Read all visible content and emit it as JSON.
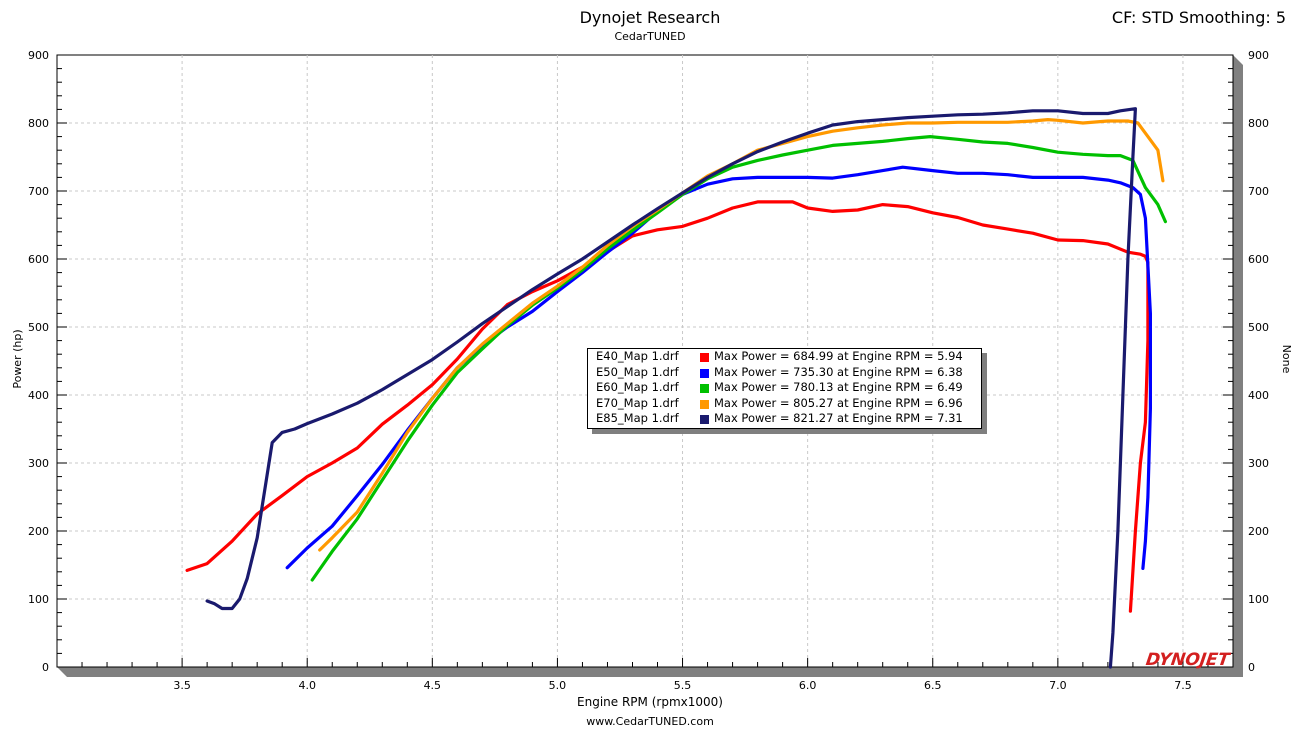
{
  "header": {
    "title": "Dynojet Research",
    "subtitle": "CedarTUNED",
    "correction": "CF: STD Smoothing: 5"
  },
  "footer": {
    "url": "www.CedarTUNED.com"
  },
  "logo": {
    "text": "DYNOJET",
    "color": "#d32020"
  },
  "chart_data": {
    "type": "line",
    "title": "Dynojet Research",
    "subtitle": "CedarTUNED",
    "xlabel": "Engine RPM (rpmx1000)",
    "ylabel": "Power (hp)",
    "y2label": "None",
    "xlim": [
      3.0,
      7.7
    ],
    "ylim": [
      0,
      900
    ],
    "x_ticks": [
      "3.5",
      "4.0",
      "4.5",
      "5.0",
      "5.5",
      "6.0",
      "6.5",
      "7.0",
      "7.5"
    ],
    "y_ticks": [
      "0",
      "100",
      "200",
      "300",
      "400",
      "500",
      "600",
      "700",
      "800",
      "900"
    ],
    "grid": true,
    "legend_position": "center",
    "series": [
      {
        "name": "E40_Map 1.drf",
        "legend": "Max Power = 684.99 at Engine RPM = 5.94",
        "color": "#ff0000",
        "points": [
          [
            3.52,
            142
          ],
          [
            3.6,
            152
          ],
          [
            3.7,
            185
          ],
          [
            3.8,
            225
          ],
          [
            3.9,
            252
          ],
          [
            4.0,
            280
          ],
          [
            4.1,
            300
          ],
          [
            4.2,
            322
          ],
          [
            4.3,
            357
          ],
          [
            4.4,
            385
          ],
          [
            4.5,
            415
          ],
          [
            4.6,
            453
          ],
          [
            4.7,
            497
          ],
          [
            4.8,
            533
          ],
          [
            4.9,
            552
          ],
          [
            5.0,
            568
          ],
          [
            5.1,
            588
          ],
          [
            5.2,
            611
          ],
          [
            5.3,
            634
          ],
          [
            5.4,
            643
          ],
          [
            5.5,
            648
          ],
          [
            5.6,
            660
          ],
          [
            5.7,
            675
          ],
          [
            5.8,
            684
          ],
          [
            5.94,
            684
          ],
          [
            6.0,
            675
          ],
          [
            6.1,
            670
          ],
          [
            6.2,
            672
          ],
          [
            6.3,
            680
          ],
          [
            6.4,
            677
          ],
          [
            6.5,
            668
          ],
          [
            6.6,
            661
          ],
          [
            6.7,
            650
          ],
          [
            6.8,
            644
          ],
          [
            6.9,
            638
          ],
          [
            7.0,
            628
          ],
          [
            7.1,
            627
          ],
          [
            7.2,
            622
          ],
          [
            7.28,
            610
          ],
          [
            7.33,
            607
          ],
          [
            7.35,
            604
          ],
          [
            7.36,
            595
          ],
          [
            7.36,
            480
          ],
          [
            7.35,
            360
          ],
          [
            7.33,
            300
          ],
          [
            7.31,
            200
          ],
          [
            7.29,
            82
          ]
        ]
      },
      {
        "name": "E50_Map 1.drf",
        "legend": "Max Power = 735.30 at Engine RPM = 6.38",
        "color": "#0000ff",
        "points": [
          [
            3.92,
            146
          ],
          [
            4.0,
            175
          ],
          [
            4.1,
            207
          ],
          [
            4.2,
            252
          ],
          [
            4.3,
            298
          ],
          [
            4.4,
            348
          ],
          [
            4.5,
            395
          ],
          [
            4.6,
            440
          ],
          [
            4.7,
            473
          ],
          [
            4.8,
            500
          ],
          [
            4.9,
            523
          ],
          [
            5.0,
            552
          ],
          [
            5.1,
            580
          ],
          [
            5.2,
            610
          ],
          [
            5.3,
            638
          ],
          [
            5.4,
            670
          ],
          [
            5.5,
            695
          ],
          [
            5.6,
            710
          ],
          [
            5.7,
            718
          ],
          [
            5.8,
            720
          ],
          [
            5.9,
            720
          ],
          [
            6.0,
            720
          ],
          [
            6.1,
            719
          ],
          [
            6.2,
            724
          ],
          [
            6.3,
            730
          ],
          [
            6.38,
            735
          ],
          [
            6.5,
            730
          ],
          [
            6.6,
            726
          ],
          [
            6.7,
            726
          ],
          [
            6.8,
            724
          ],
          [
            6.9,
            720
          ],
          [
            7.0,
            720
          ],
          [
            7.1,
            720
          ],
          [
            7.2,
            716
          ],
          [
            7.25,
            712
          ],
          [
            7.3,
            705
          ],
          [
            7.33,
            695
          ],
          [
            7.35,
            660
          ],
          [
            7.37,
            520
          ],
          [
            7.37,
            380
          ],
          [
            7.36,
            250
          ],
          [
            7.35,
            185
          ],
          [
            7.34,
            145
          ]
        ]
      },
      {
        "name": "E60_Map 1.drf",
        "legend": "Max Power = 780.13 at Engine RPM = 6.49",
        "color": "#00c000",
        "points": [
          [
            4.02,
            128
          ],
          [
            4.1,
            170
          ],
          [
            4.2,
            218
          ],
          [
            4.3,
            275
          ],
          [
            4.4,
            332
          ],
          [
            4.5,
            385
          ],
          [
            4.6,
            433
          ],
          [
            4.7,
            468
          ],
          [
            4.8,
            502
          ],
          [
            4.9,
            532
          ],
          [
            5.0,
            557
          ],
          [
            5.1,
            584
          ],
          [
            5.2,
            615
          ],
          [
            5.3,
            642
          ],
          [
            5.4,
            668
          ],
          [
            5.5,
            695
          ],
          [
            5.6,
            718
          ],
          [
            5.7,
            735
          ],
          [
            5.8,
            745
          ],
          [
            5.9,
            753
          ],
          [
            6.0,
            760
          ],
          [
            6.1,
            767
          ],
          [
            6.2,
            770
          ],
          [
            6.3,
            773
          ],
          [
            6.4,
            777
          ],
          [
            6.49,
            780
          ],
          [
            6.6,
            776
          ],
          [
            6.7,
            772
          ],
          [
            6.8,
            770
          ],
          [
            6.9,
            764
          ],
          [
            7.0,
            757
          ],
          [
            7.1,
            754
          ],
          [
            7.2,
            752
          ],
          [
            7.25,
            752
          ],
          [
            7.3,
            745
          ],
          [
            7.35,
            705
          ],
          [
            7.4,
            680
          ],
          [
            7.43,
            655
          ]
        ]
      },
      {
        "name": "E70_Map 1.drf",
        "legend": "Max Power = 805.27 at Engine RPM = 6.96",
        "color": "#ff9900",
        "points": [
          [
            4.05,
            172
          ],
          [
            4.1,
            190
          ],
          [
            4.2,
            228
          ],
          [
            4.3,
            285
          ],
          [
            4.4,
            345
          ],
          [
            4.5,
            395
          ],
          [
            4.6,
            440
          ],
          [
            4.7,
            475
          ],
          [
            4.8,
            505
          ],
          [
            4.9,
            535
          ],
          [
            5.0,
            560
          ],
          [
            5.1,
            588
          ],
          [
            5.2,
            620
          ],
          [
            5.3,
            648
          ],
          [
            5.4,
            672
          ],
          [
            5.5,
            697
          ],
          [
            5.6,
            722
          ],
          [
            5.7,
            740
          ],
          [
            5.8,
            760
          ],
          [
            5.9,
            770
          ],
          [
            6.0,
            780
          ],
          [
            6.1,
            788
          ],
          [
            6.2,
            793
          ],
          [
            6.3,
            797
          ],
          [
            6.4,
            800
          ],
          [
            6.5,
            800
          ],
          [
            6.6,
            801
          ],
          [
            6.7,
            801
          ],
          [
            6.8,
            801
          ],
          [
            6.9,
            803
          ],
          [
            6.96,
            805
          ],
          [
            7.0,
            804
          ],
          [
            7.1,
            800
          ],
          [
            7.2,
            803
          ],
          [
            7.28,
            803
          ],
          [
            7.32,
            800
          ],
          [
            7.36,
            780
          ],
          [
            7.4,
            760
          ],
          [
            7.42,
            715
          ]
        ]
      },
      {
        "name": "E85_Map 1.drf",
        "legend": "Max Power = 821.27 at Engine RPM = 7.31",
        "color": "#1a1a6e",
        "points": [
          [
            3.6,
            97
          ],
          [
            3.63,
            93
          ],
          [
            3.66,
            86
          ],
          [
            3.7,
            86
          ],
          [
            3.73,
            100
          ],
          [
            3.76,
            130
          ],
          [
            3.8,
            190
          ],
          [
            3.83,
            260
          ],
          [
            3.86,
            330
          ],
          [
            3.9,
            345
          ],
          [
            3.95,
            350
          ],
          [
            4.0,
            358
          ],
          [
            4.1,
            372
          ],
          [
            4.2,
            388
          ],
          [
            4.3,
            408
          ],
          [
            4.4,
            430
          ],
          [
            4.5,
            452
          ],
          [
            4.6,
            478
          ],
          [
            4.7,
            505
          ],
          [
            4.8,
            530
          ],
          [
            4.9,
            555
          ],
          [
            5.0,
            578
          ],
          [
            5.1,
            600
          ],
          [
            5.2,
            625
          ],
          [
            5.3,
            650
          ],
          [
            5.4,
            674
          ],
          [
            5.5,
            697
          ],
          [
            5.6,
            720
          ],
          [
            5.7,
            740
          ],
          [
            5.8,
            758
          ],
          [
            5.9,
            772
          ],
          [
            6.0,
            785
          ],
          [
            6.1,
            797
          ],
          [
            6.2,
            802
          ],
          [
            6.3,
            805
          ],
          [
            6.4,
            808
          ],
          [
            6.5,
            810
          ],
          [
            6.6,
            812
          ],
          [
            6.7,
            813
          ],
          [
            6.8,
            815
          ],
          [
            6.9,
            818
          ],
          [
            7.0,
            818
          ],
          [
            7.1,
            814
          ],
          [
            7.2,
            814
          ],
          [
            7.25,
            818
          ],
          [
            7.31,
            821
          ],
          [
            7.3,
            750
          ],
          [
            7.28,
            600
          ],
          [
            7.26,
            400
          ],
          [
            7.24,
            200
          ],
          [
            7.22,
            50
          ],
          [
            7.21,
            0
          ]
        ]
      }
    ]
  }
}
